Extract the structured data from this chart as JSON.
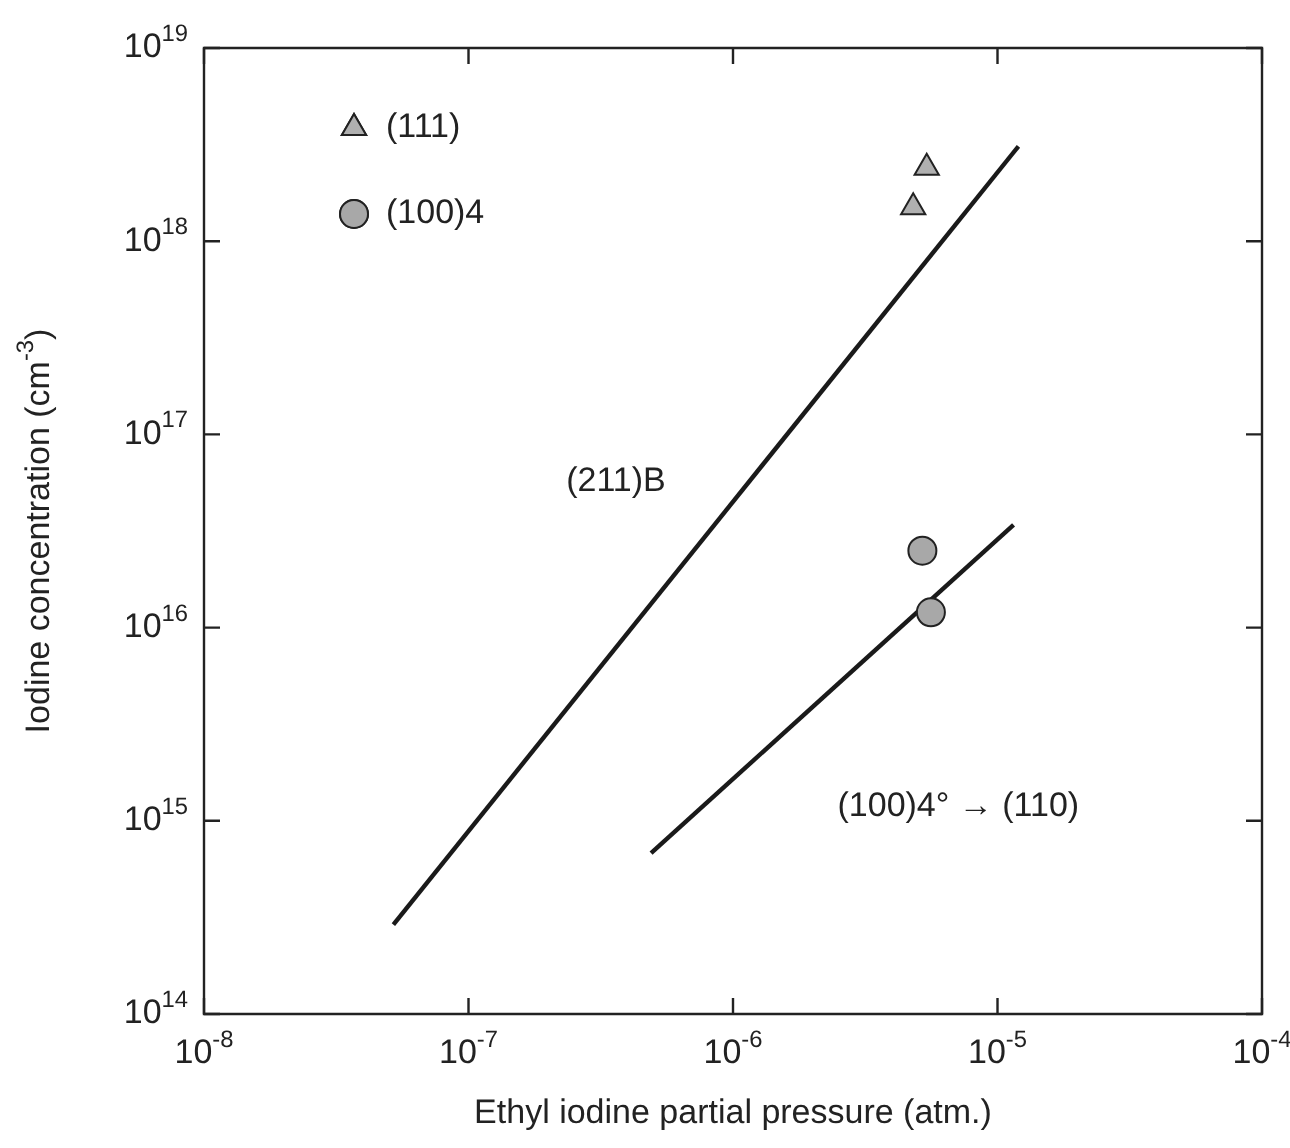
{
  "chart_data": {
    "type": "scatter",
    "xlabel": "Ethyl iodine partial pressure (atm.)",
    "ylabel": "Iodine concentration (cm$^{-3}$)",
    "log": "xy",
    "legend": "top left",
    "grid": false,
    "xlim": [
      1e-08,
      0.0001
    ],
    "ylim": [
      100000000000000.0,
      1e+19
    ],
    "xticks": [
      {
        "value": 1e-08,
        "label": "10$^{-8}$"
      },
      {
        "value": 1e-07,
        "label": "10$^{-7}$"
      },
      {
        "value": 1e-06,
        "label": "10$^{-6}$"
      },
      {
        "value": 1e-05,
        "label": "10$^{-5}$"
      },
      {
        "value": 0.0001,
        "label": "10$^{-4}$"
      }
    ],
    "yticks": [
      {
        "value": 100000000000000.0,
        "label": "10$^{14}$"
      },
      {
        "value": 1000000000000000.0,
        "label": "10$^{15}$"
      },
      {
        "value": 1e+16,
        "label": "10$^{16}$"
      },
      {
        "value": 1e+17,
        "label": "10$^{17}$"
      },
      {
        "value": 1e+18,
        "label": "10$^{18}$"
      },
      {
        "value": 1e+19,
        "label": "10$^{19}$"
      }
    ],
    "series": [
      {
        "name": "(111)",
        "marker": "triangle",
        "color": "#b0b0b0",
        "x": [
          4.8e-06,
          5.4e-06
        ],
        "values": [
          1.5e+18,
          2.4e+18
        ]
      },
      {
        "name": "(100)4",
        "marker": "circle",
        "color": "#a8a8a8",
        "x": [
          5.2e-06,
          5.6e-06
        ],
        "values": [
          2.5e+16,
          1.2e+16
        ]
      },
      {
        "type": "line",
        "marker": "none",
        "line_style": "solid",
        "color": "#1a1a1a",
        "x": [
          5.2e-08,
          1.2e-05
        ],
        "values": [
          290000000000000.0,
          3.1e+18
        ]
      },
      {
        "type": "line",
        "marker": "none",
        "line_style": "solid",
        "color": "#1a1a1a",
        "x": [
          4.9e-07,
          1.15e-05
        ],
        "values": [
          680000000000000.0,
          3.4e+16
        ]
      }
    ],
    "annotations": [
      "(211)B",
      "(100)4° → (110)"
    ]
  }
}
